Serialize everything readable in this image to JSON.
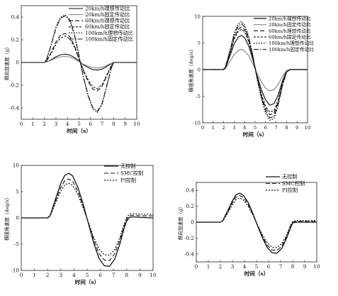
{
  "chart_data": [
    {
      "type": "line",
      "title": "",
      "xlabel": "时间（s）",
      "ylabel": "侧向加速度（g）",
      "xlim": [
        0,
        10
      ],
      "ylim": [
        -0.5,
        0.5
      ],
      "xticks": [
        0,
        1,
        2,
        3,
        4,
        5,
        6,
        7,
        8,
        9,
        10
      ],
      "yticks": [
        -0.4,
        -0.2,
        0,
        0.2,
        0.4
      ],
      "ytick_labels": [
        "-0.4",
        "-0.2",
        "0",
        "0.2",
        "0.4"
      ],
      "grid": false,
      "legend_position": "top-right",
      "x": [
        0,
        1,
        2,
        2.2,
        2.6,
        3,
        3.4,
        3.8,
        4.2,
        4.6,
        5,
        5.4,
        5.8,
        6.2,
        6.6,
        7,
        7.4,
        7.8,
        8,
        8.2,
        8.5,
        9,
        10
      ],
      "series": [
        {
          "name": "20km/h理想传动比",
          "color": "#111111",
          "dash": "solid",
          "width": 1.1,
          "values": [
            0,
            0,
            0,
            0.005,
            0.025,
            0.05,
            0.068,
            0.073,
            0.066,
            0.044,
            0.012,
            -0.022,
            -0.045,
            -0.063,
            -0.067,
            -0.058,
            -0.035,
            -0.01,
            0,
            0,
            0,
            0,
            0
          ]
        },
        {
          "name": "20km/h固定传动比",
          "color": "#888888",
          "dash": "solid",
          "width": 1.1,
          "values": [
            0,
            0,
            0,
            0.004,
            0.02,
            0.038,
            0.05,
            0.054,
            0.048,
            0.032,
            0.008,
            -0.016,
            -0.033,
            -0.045,
            -0.049,
            -0.042,
            -0.025,
            -0.007,
            0,
            0,
            0,
            0,
            0
          ]
        },
        {
          "name": "60km/h理想传动比",
          "color": "#111111",
          "dash": "6,3",
          "width": 1.1,
          "values": [
            0,
            0,
            0,
            0.015,
            0.09,
            0.18,
            0.24,
            0.255,
            0.23,
            0.15,
            0.035,
            -0.08,
            -0.17,
            -0.235,
            -0.25,
            -0.21,
            -0.12,
            -0.03,
            0,
            0,
            0,
            0,
            0
          ]
        },
        {
          "name": "60km/h固定传动比",
          "color": "#111111",
          "dash": "3,2",
          "width": 1.1,
          "values": [
            0,
            0,
            0,
            0.014,
            0.08,
            0.16,
            0.215,
            0.232,
            0.21,
            0.135,
            0.03,
            -0.072,
            -0.155,
            -0.215,
            -0.23,
            -0.195,
            -0.11,
            -0.028,
            0,
            0,
            0,
            0,
            0
          ]
        },
        {
          "name": "100km/h理想传动比",
          "color": "#111111",
          "dash": "1.5,2",
          "width": 1.3,
          "values": [
            0,
            0,
            0,
            0.03,
            0.16,
            0.31,
            0.4,
            0.42,
            0.38,
            0.25,
            0.06,
            -0.14,
            -0.3,
            -0.41,
            -0.44,
            -0.37,
            -0.21,
            -0.05,
            0,
            0,
            0,
            0,
            0
          ]
        },
        {
          "name": "100km/h固定传动比",
          "color": "#111111",
          "dash": "7,2,1.5,2",
          "width": 1.1,
          "values": [
            0,
            0,
            0,
            0.028,
            0.155,
            0.3,
            0.39,
            0.41,
            0.37,
            0.245,
            0.058,
            -0.135,
            -0.29,
            -0.4,
            -0.43,
            -0.36,
            -0.205,
            -0.048,
            0,
            0,
            0,
            0,
            0
          ]
        }
      ]
    },
    {
      "type": "line",
      "title": "",
      "xlabel": "时间（s）",
      "ylabel": "横摆角速度（deg/s）",
      "xlim": [
        0,
        10
      ],
      "ylim": [
        -10,
        10
      ],
      "xticks": [
        0,
        1,
        2,
        3,
        4,
        5,
        6,
        7,
        8,
        9,
        10
      ],
      "yticks": [
        -10,
        -5,
        0,
        5,
        10
      ],
      "ytick_labels": [
        "-10",
        "-5",
        "0",
        "5",
        "10"
      ],
      "grid": false,
      "legend_position": "top-right",
      "x": [
        0,
        1,
        2,
        2.2,
        2.6,
        3,
        3.4,
        3.7,
        4,
        4.4,
        4.8,
        5.2,
        5.6,
        6,
        6.4,
        6.8,
        7.2,
        7.6,
        8,
        8.3,
        9,
        10
      ],
      "series": [
        {
          "name": "20km/h理想传动比",
          "color": "#111111",
          "dash": "solid",
          "width": 1.2,
          "values": [
            0,
            0,
            0,
            0.4,
            2.6,
            4.8,
            6.1,
            6.4,
            6.0,
            4.4,
            1.8,
            -1.2,
            -3.8,
            -5.7,
            -6.7,
            -6.4,
            -4.8,
            -2.2,
            -0.3,
            0,
            0,
            0
          ]
        },
        {
          "name": "20km/h固定传动比",
          "color": "#888888",
          "dash": "solid",
          "width": 1.2,
          "values": [
            0,
            0,
            0,
            0.2,
            1.5,
            2.8,
            3.6,
            3.8,
            3.5,
            2.6,
            1.0,
            -0.8,
            -2.3,
            -3.5,
            -4.0,
            -3.8,
            -2.8,
            -1.3,
            -0.2,
            0,
            0,
            0
          ]
        },
        {
          "name": "60km/h理想传动比",
          "color": "#111111",
          "dash": "6,3",
          "width": 1.1,
          "values": [
            0,
            0,
            0,
            0.6,
            3.2,
            6.0,
            7.6,
            8.0,
            7.5,
            5.5,
            2.2,
            -1.6,
            -4.9,
            -7.3,
            -8.5,
            -8.2,
            -6.1,
            -2.8,
            -0.4,
            0,
            0,
            0
          ]
        },
        {
          "name": "60km/h固定传动比",
          "color": "#111111",
          "dash": "3,2",
          "width": 1.1,
          "values": [
            0,
            0,
            0,
            0.6,
            3.0,
            5.7,
            7.2,
            7.6,
            7.1,
            5.2,
            2.1,
            -1.5,
            -4.6,
            -6.9,
            -8.0,
            -7.7,
            -5.7,
            -2.6,
            -0.4,
            0,
            0,
            0
          ]
        },
        {
          "name": "100km/h理想传动比",
          "color": "#111111",
          "dash": "1.5,2",
          "width": 1.3,
          "values": [
            0,
            0,
            0,
            0.7,
            3.6,
            6.8,
            8.6,
            9.0,
            8.4,
            6.2,
            2.5,
            -1.8,
            -5.5,
            -8.2,
            -9.5,
            -9.2,
            -6.8,
            -3.1,
            -0.5,
            0,
            0,
            0
          ]
        },
        {
          "name": "100km/h固定传动比",
          "color": "#111111",
          "dash": "7,2,1.5,2",
          "width": 1.1,
          "values": [
            0,
            0,
            0,
            0.7,
            3.4,
            6.5,
            8.2,
            8.6,
            8.0,
            5.9,
            2.4,
            -1.7,
            -5.2,
            -7.8,
            -9.1,
            -8.8,
            -6.5,
            -3.0,
            -0.5,
            0,
            0,
            0
          ]
        }
      ]
    },
    {
      "type": "line",
      "title": "",
      "xlabel": "时间（s）",
      "ylabel": "横摆角速度（deg/s）",
      "xlim": [
        0,
        10
      ],
      "ylim": [
        -10,
        10
      ],
      "xticks": [
        0,
        1,
        2,
        3,
        4,
        5,
        6,
        7,
        8,
        9,
        10
      ],
      "yticks": [
        -10,
        -5,
        0,
        5,
        10
      ],
      "ytick_labels": [
        "-10",
        "-5",
        "0",
        "5",
        "10"
      ],
      "grid": false,
      "legend_position": "top-right",
      "x": [
        0,
        1,
        2,
        2.2,
        2.6,
        3,
        3.3,
        3.6,
        3.9,
        4.3,
        4.7,
        5.1,
        5.5,
        5.9,
        6.3,
        6.7,
        7.1,
        7.5,
        7.8,
        8,
        8.2,
        8.5,
        9,
        10
      ],
      "series": [
        {
          "name": "无控制",
          "color": "#111111",
          "dash": "solid",
          "width": 1.3,
          "values": [
            0,
            0,
            0,
            0.5,
            3.6,
            6.6,
            8.1,
            8.5,
            8.0,
            5.8,
            2.6,
            -1.1,
            -4.8,
            -7.7,
            -9.1,
            -9.2,
            -7.8,
            -4.8,
            -2.0,
            -0.6,
            0.1,
            0.2,
            0.1,
            0
          ]
        },
        {
          "name": "SMC控制",
          "color": "#111111",
          "dash": "6,3",
          "width": 1.1,
          "values": [
            0,
            0,
            0,
            0.5,
            3.2,
            5.8,
            7.1,
            7.4,
            7.0,
            5.0,
            2.2,
            -1.0,
            -4.2,
            -6.8,
            -8.0,
            -8.1,
            -6.8,
            -4.1,
            -1.5,
            -0.2,
            0.4,
            0.5,
            0.4,
            0.4
          ]
        },
        {
          "name": "PI控制",
          "color": "#111111",
          "dash": "2,2",
          "width": 1.2,
          "values": [
            0,
            0,
            0,
            0.4,
            2.8,
            5.1,
            6.3,
            6.6,
            6.2,
            4.4,
            1.9,
            -0.9,
            -3.7,
            -5.9,
            -7.0,
            -7.1,
            -6.0,
            -3.6,
            -1.2,
            0.1,
            0.7,
            0.8,
            0.7,
            0.7
          ]
        }
      ]
    },
    {
      "type": "line",
      "title": "",
      "xlabel": "时间（s）",
      "ylabel": "侧向加速度（g）",
      "xlim": [
        0,
        10
      ],
      "ylim": [
        -0.5,
        0.5
      ],
      "xticks": [
        0,
        1,
        2,
        3,
        4,
        5,
        6,
        7,
        8,
        9,
        10
      ],
      "yticks": [
        -0.4,
        -0.2,
        0,
        0.2,
        0.4
      ],
      "ytick_labels": [
        "-0.4",
        "-0.2",
        "0",
        "0.2",
        "0.4"
      ],
      "grid": false,
      "legend_position": "top-right",
      "x": [
        0,
        1,
        2,
        2.2,
        2.6,
        3,
        3.3,
        3.6,
        3.9,
        4.3,
        4.7,
        5.1,
        5.5,
        5.9,
        6.3,
        6.7,
        7.1,
        7.5,
        7.8,
        8,
        8.3,
        9,
        10
      ],
      "series": [
        {
          "name": "无控制",
          "color": "#111111",
          "dash": "solid",
          "width": 1.3,
          "values": [
            0,
            0,
            0,
            0.02,
            0.14,
            0.27,
            0.345,
            0.365,
            0.34,
            0.25,
            0.11,
            -0.05,
            -0.2,
            -0.32,
            -0.385,
            -0.39,
            -0.33,
            -0.2,
            -0.08,
            -0.01,
            0,
            0,
            0
          ]
        },
        {
          "name": "SMC控制",
          "color": "#111111",
          "dash": "6,3",
          "width": 1.1,
          "values": [
            0,
            0,
            0,
            0.018,
            0.125,
            0.245,
            0.315,
            0.335,
            0.31,
            0.225,
            0.1,
            -0.045,
            -0.18,
            -0.29,
            -0.35,
            -0.355,
            -0.3,
            -0.18,
            -0.06,
            0,
            0.01,
            0.01,
            0.01
          ]
        },
        {
          "name": "PI控制",
          "color": "#111111",
          "dash": "2,2",
          "width": 1.2,
          "values": [
            0,
            0,
            0,
            0.016,
            0.11,
            0.22,
            0.285,
            0.305,
            0.28,
            0.2,
            0.09,
            -0.04,
            -0.16,
            -0.26,
            -0.315,
            -0.32,
            -0.27,
            -0.16,
            -0.045,
            0.01,
            0.02,
            0.02,
            0.02
          ]
        }
      ]
    }
  ]
}
